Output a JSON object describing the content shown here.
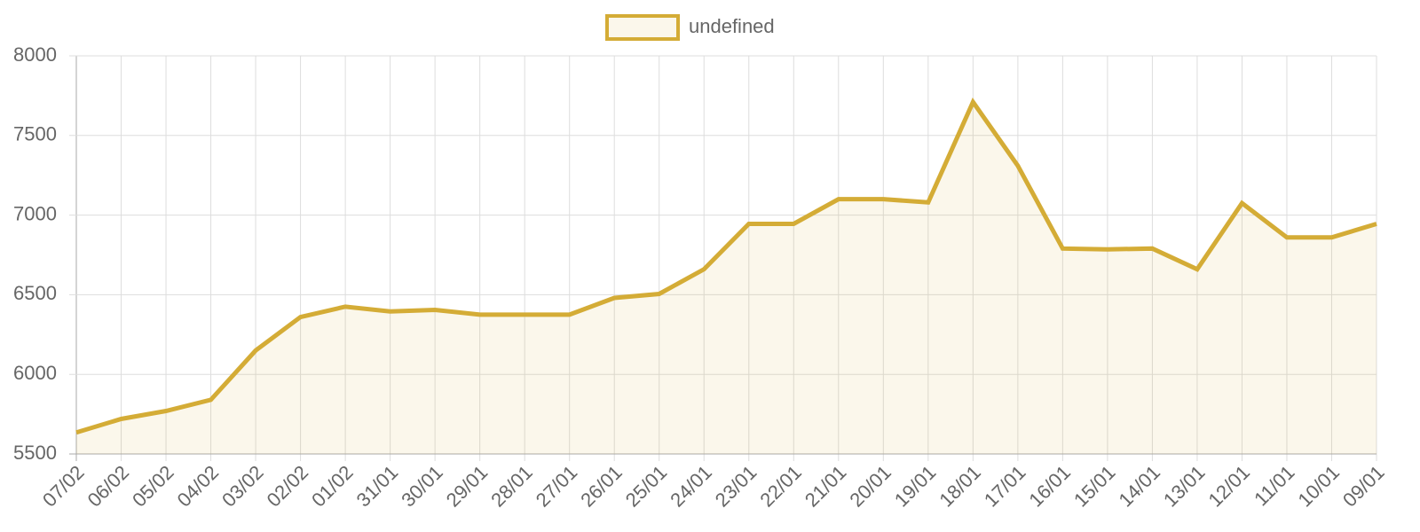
{
  "chart_data": {
    "type": "line",
    "categories": [
      "07/02",
      "06/02",
      "05/02",
      "04/02",
      "03/02",
      "02/02",
      "01/02",
      "31/01",
      "30/01",
      "29/01",
      "28/01",
      "27/01",
      "26/01",
      "25/01",
      "24/01",
      "23/01",
      "22/01",
      "21/01",
      "20/01",
      "19/01",
      "18/01",
      "17/01",
      "16/01",
      "15/01",
      "14/01",
      "13/01",
      "12/01",
      "11/01",
      "10/01",
      "09/01"
    ],
    "series": [
      {
        "name": "undefined",
        "color": "#d4ac36",
        "fill": true,
        "values": [
          5635,
          5720,
          5770,
          5840,
          6150,
          6360,
          6425,
          6395,
          6405,
          6375,
          6375,
          6375,
          6480,
          6505,
          6660,
          6945,
          6945,
          7100,
          7100,
          7080,
          7710,
          7310,
          6790,
          6785,
          6790,
          6660,
          7075,
          6860,
          6860,
          6945
        ]
      }
    ],
    "ylim": [
      5500,
      8000
    ],
    "yticks": [
      5500,
      6000,
      6500,
      7000,
      7500,
      8000
    ],
    "grid": true,
    "legend": "top"
  }
}
